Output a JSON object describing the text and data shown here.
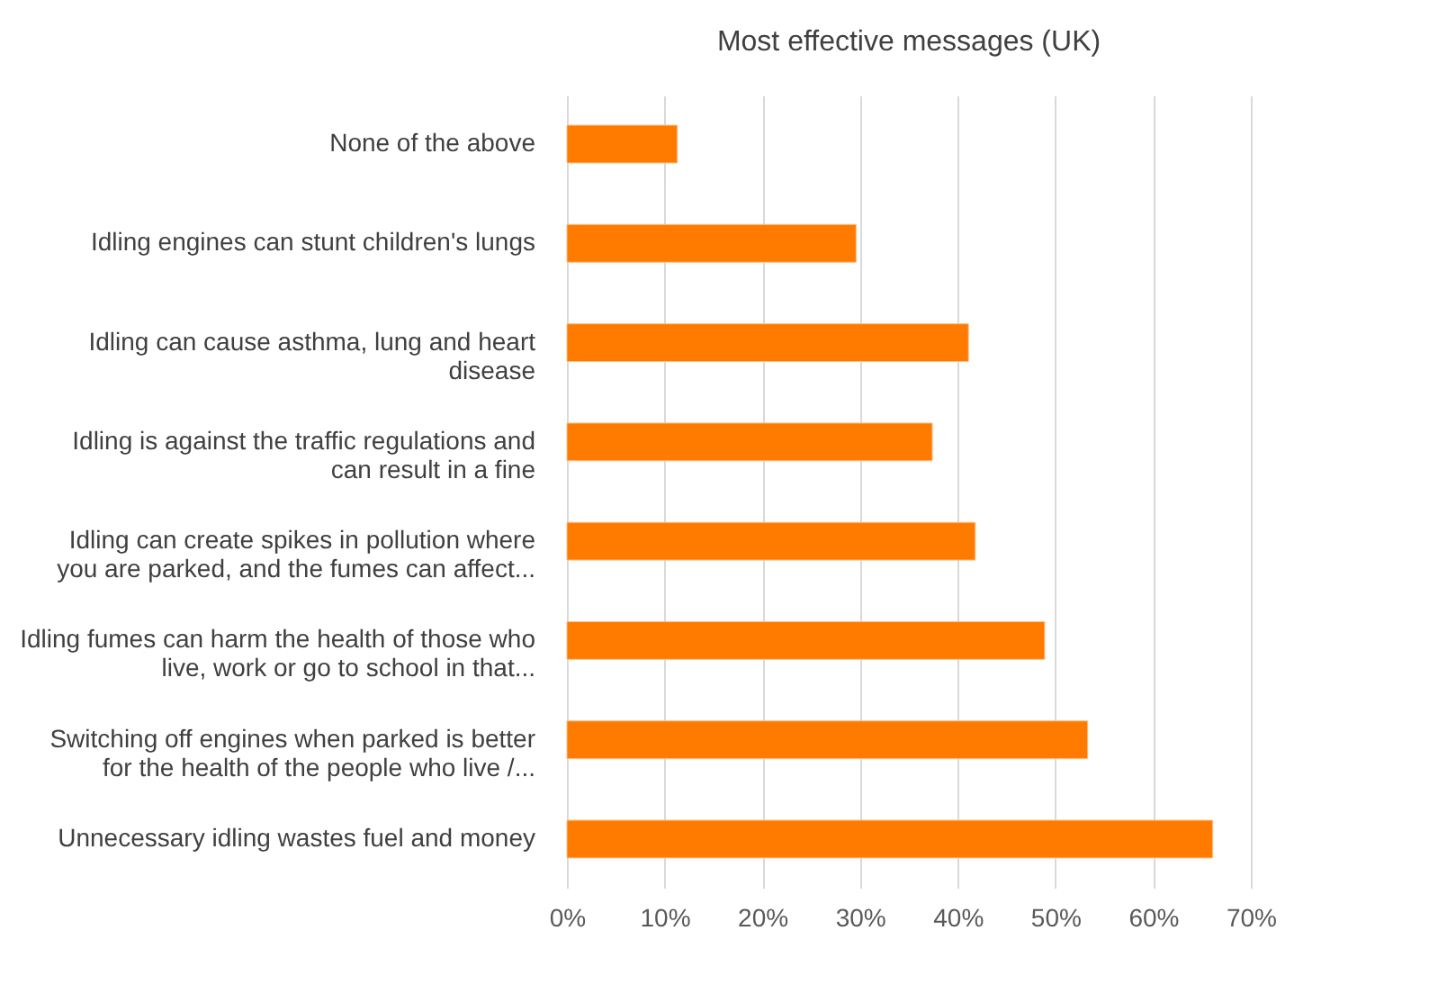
{
  "chart_data": {
    "type": "bar",
    "orientation": "horizontal",
    "title": "Most effective messages (UK)",
    "categories": [
      "None of the above",
      "Idling engines can stunt children's lungs",
      "Idling can cause asthma, lung and heart disease",
      "Idling is against the traffic regulations and can result in a fine",
      "Idling can create spikes in pollution where you are parked, and the fumes can affect...",
      "Idling fumes can harm the health of those who live, work or go to school in that...",
      "Switching off engines when parked is better for the health of the people who live /...",
      "Unnecessary idling wastes fuel and money"
    ],
    "values": [
      11.3,
      29.6,
      41.1,
      37.4,
      41.8,
      48.9,
      53.3,
      66.1
    ],
    "color": "#ff7b00",
    "xlim": [
      0,
      70
    ],
    "xticks": [
      {
        "value": 0,
        "label": "0%"
      },
      {
        "value": 10,
        "label": "10%"
      },
      {
        "value": 20,
        "label": "20%"
      },
      {
        "value": 30,
        "label": "30%"
      },
      {
        "value": 40,
        "label": "40%"
      },
      {
        "value": 50,
        "label": "50%"
      },
      {
        "value": 60,
        "label": "60%"
      },
      {
        "value": 70,
        "label": "70%"
      }
    ],
    "grid": "x"
  }
}
